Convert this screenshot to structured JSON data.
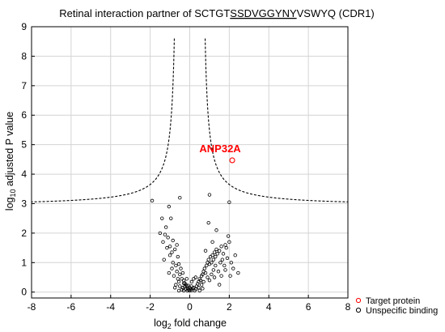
{
  "chart_data": {
    "type": "scatter",
    "title": {
      "prefix": "Retinal interaction partner of SCTGT",
      "underlined": "SSDVGGYNY",
      "suffix": "VSWYQ (CDR1)"
    },
    "xlabel": {
      "base": "log",
      "sub": "2",
      "rest": " fold change"
    },
    "ylabel": {
      "base": "log",
      "sub": "10",
      "rest": " adjusted P value"
    },
    "xlim": [
      -8,
      8
    ],
    "ylim": [
      -0.2,
      9
    ],
    "xticks": [
      -8,
      -6,
      -4,
      -2,
      0,
      2,
      4,
      6,
      8
    ],
    "yticks": [
      0,
      1,
      2,
      3,
      4,
      5,
      6,
      7,
      8,
      9
    ],
    "xtick_labels": [
      "-8",
      "-6",
      "-4",
      "-2",
      "0",
      "2",
      "4",
      "6",
      "8"
    ],
    "ytick_labels": [
      "0",
      "1",
      "2",
      "3",
      "4",
      "5",
      "6",
      "7",
      "8",
      "9"
    ],
    "grid": true,
    "legend_position": "outside-bottom-right",
    "threshold_curve": {
      "style": "dashed",
      "asymptote_x": 0.6,
      "constant": 1.02,
      "floor": 2.92,
      "max_y": 8.6
    },
    "series": [
      {
        "name": "Target protein",
        "color": "#ff0000",
        "marker": "open-circle",
        "points": [
          [
            2.15,
            4.47
          ]
        ]
      },
      {
        "name": "Unspecific binding",
        "color": "#000000",
        "marker": "open-circle",
        "points": [
          [
            -1.9,
            3.1
          ],
          [
            -0.5,
            3.2
          ],
          [
            1.0,
            3.3
          ],
          [
            2.0,
            3.05
          ],
          [
            -1.4,
            2.5
          ],
          [
            -1.2,
            2.2
          ],
          [
            -1.5,
            2.0
          ],
          [
            -1.25,
            1.95
          ],
          [
            -1.1,
            1.85
          ],
          [
            -0.85,
            1.75
          ],
          [
            -0.95,
            2.5
          ],
          [
            -1.0,
            1.55
          ],
          [
            -1.15,
            1.5
          ],
          [
            -0.9,
            1.35
          ],
          [
            -0.75,
            1.45
          ],
          [
            -0.6,
            1.2
          ],
          [
            -1.3,
            1.1
          ],
          [
            -0.85,
            1.0
          ],
          [
            -0.7,
            0.9
          ],
          [
            -0.55,
            0.95
          ],
          [
            -0.45,
            0.8
          ],
          [
            -0.65,
            0.7
          ],
          [
            -0.5,
            0.6
          ],
          [
            -0.35,
            0.65
          ],
          [
            -0.8,
            0.55
          ],
          [
            -0.4,
            0.45
          ],
          [
            -0.3,
            0.4
          ],
          [
            -0.55,
            0.35
          ],
          [
            -0.25,
            0.3
          ],
          [
            -0.2,
            0.25
          ],
          [
            -0.15,
            0.2
          ],
          [
            -0.35,
            0.15
          ],
          [
            -0.1,
            0.12
          ],
          [
            -0.05,
            0.08
          ],
          [
            0.0,
            0.05
          ],
          [
            0.05,
            0.1
          ],
          [
            -0.12,
            0.05
          ],
          [
            0.1,
            0.06
          ],
          [
            -0.2,
            0.1
          ],
          [
            0.15,
            0.12
          ],
          [
            -0.25,
            0.18
          ],
          [
            0.2,
            0.15
          ],
          [
            0.0,
            0.15
          ],
          [
            -0.08,
            0.22
          ],
          [
            0.08,
            0.2
          ],
          [
            -0.3,
            0.05
          ],
          [
            0.25,
            0.05
          ],
          [
            -0.4,
            0.08
          ],
          [
            0.3,
            0.1
          ],
          [
            0.35,
            0.2
          ],
          [
            0.4,
            0.28
          ],
          [
            0.45,
            0.35
          ],
          [
            0.5,
            0.45
          ],
          [
            0.55,
            0.4
          ],
          [
            0.6,
            0.55
          ],
          [
            0.65,
            0.6
          ],
          [
            0.7,
            0.7
          ],
          [
            0.75,
            0.8
          ],
          [
            0.8,
            0.65
          ],
          [
            0.85,
            0.9
          ],
          [
            0.9,
            1.0
          ],
          [
            0.95,
            1.1
          ],
          [
            1.0,
            0.95
          ],
          [
            1.05,
            1.2
          ],
          [
            1.1,
            1.0
          ],
          [
            1.15,
            1.25
          ],
          [
            1.2,
            1.1
          ],
          [
            1.25,
            1.35
          ],
          [
            1.3,
            1.2
          ],
          [
            1.35,
            1.45
          ],
          [
            1.4,
            1.3
          ],
          [
            1.5,
            1.4
          ],
          [
            1.55,
            1.0
          ],
          [
            1.6,
            1.55
          ],
          [
            1.65,
            1.1
          ],
          [
            1.7,
            1.3
          ],
          [
            1.75,
            0.9
          ],
          [
            1.8,
            1.6
          ],
          [
            1.85,
            1.5
          ],
          [
            1.95,
            1.9
          ],
          [
            2.05,
            0.55
          ],
          [
            2.1,
            1.0
          ],
          [
            2.2,
            0.8
          ],
          [
            2.3,
            1.25
          ],
          [
            2.45,
            0.65
          ],
          [
            1.2,
            0.75
          ],
          [
            0.9,
            0.5
          ],
          [
            1.0,
            0.4
          ],
          [
            1.1,
            0.6
          ],
          [
            1.3,
            0.9
          ],
          [
            1.45,
            0.7
          ],
          [
            0.7,
            0.35
          ],
          [
            0.6,
            0.25
          ],
          [
            0.45,
            0.15
          ],
          [
            -0.6,
            0.45
          ],
          [
            -0.7,
            0.25
          ],
          [
            -0.9,
            0.8
          ],
          [
            -1.05,
            0.65
          ],
          [
            -0.5,
            0.2
          ],
          [
            -0.3,
            0.3
          ],
          [
            0.1,
            0.35
          ],
          [
            0.2,
            0.45
          ],
          [
            0.3,
            0.5
          ],
          [
            -0.15,
            0.45
          ],
          [
            1.6,
            0.55
          ],
          [
            1.8,
            0.75
          ],
          [
            -1.35,
            1.7
          ],
          [
            -1.05,
            2.9
          ],
          [
            0.95,
            2.35
          ],
          [
            1.15,
            1.7
          ],
          [
            1.35,
            2.1
          ],
          [
            0.8,
            1.4
          ],
          [
            -0.65,
            1.6
          ],
          [
            -1.0,
            1.25
          ],
          [
            -0.75,
            0.15
          ],
          [
            -0.55,
            0.05
          ],
          [
            0.5,
            0.05
          ],
          [
            0.65,
            0.12
          ],
          [
            1.25,
            0.5
          ],
          [
            1.5,
            0.25
          ],
          [
            1.9,
            1.15
          ],
          [
            2.0,
            1.7
          ]
        ]
      }
    ],
    "annotations": [
      {
        "text": "ANP32A",
        "x": 2.15,
        "y": 4.47,
        "color": "#ff0000"
      }
    ]
  }
}
